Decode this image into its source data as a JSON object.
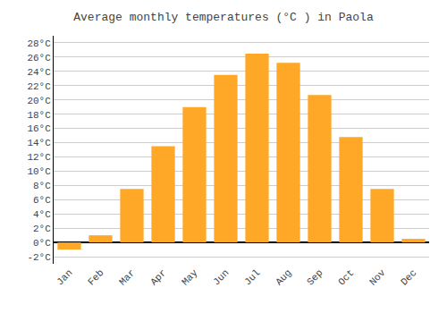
{
  "chart_data": {
    "type": "bar",
    "title": "Average monthly temperatures (°C ) in Paola",
    "categories": [
      "Jan",
      "Feb",
      "Mar",
      "Apr",
      "May",
      "Jun",
      "Jul",
      "Aug",
      "Sep",
      "Oct",
      "Nov",
      "Dec"
    ],
    "values": [
      -1.0,
      1.0,
      7.5,
      13.5,
      19.0,
      23.5,
      26.5,
      25.2,
      20.7,
      14.8,
      7.5,
      0.5
    ],
    "color": "#FFA726",
    "ylim": [
      -3,
      29
    ],
    "yticks": [
      {
        "value": -2,
        "label": "-2°C"
      },
      {
        "value": 0,
        "label": "0°C"
      },
      {
        "value": 2,
        "label": "2°C"
      },
      {
        "value": 4,
        "label": "4°C"
      },
      {
        "value": 6,
        "label": "6°C"
      },
      {
        "value": 8,
        "label": "8°C"
      },
      {
        "value": 10,
        "label": "10°C"
      },
      {
        "value": 12,
        "label": "12°C"
      },
      {
        "value": 14,
        "label": "14°C"
      },
      {
        "value": 16,
        "label": "16°C"
      },
      {
        "value": 18,
        "label": "18°C"
      },
      {
        "value": 20,
        "label": "20°C"
      },
      {
        "value": 22,
        "label": "22°C"
      },
      {
        "value": 24,
        "label": "24°C"
      },
      {
        "value": 26,
        "label": "26°C"
      },
      {
        "value": 28,
        "label": "28°C"
      }
    ],
    "grid": true
  }
}
